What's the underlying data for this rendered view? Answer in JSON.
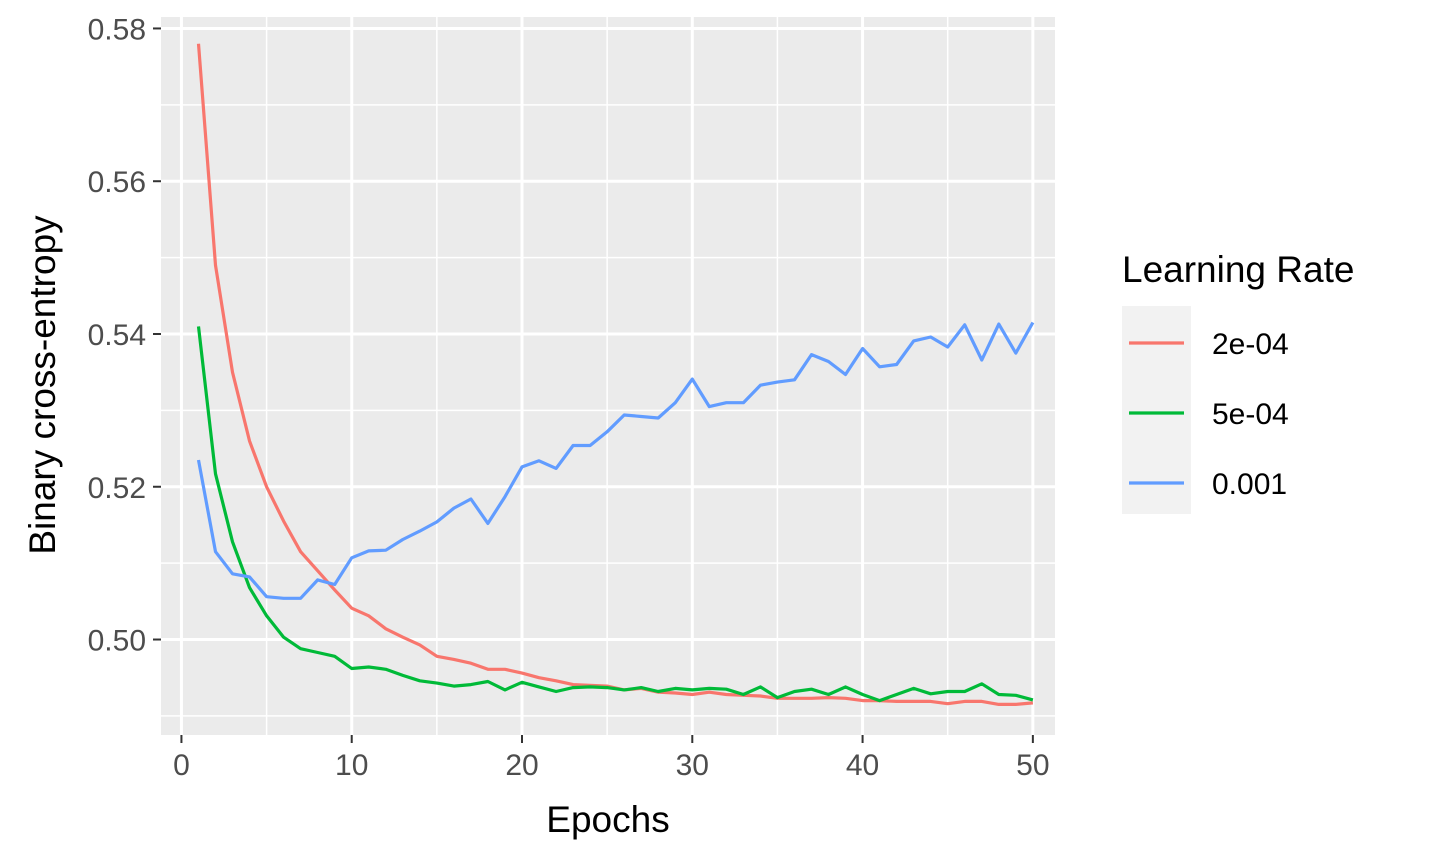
{
  "chart_data": {
    "type": "line",
    "xlabel": "Epochs",
    "ylabel": "Binary cross-entropy",
    "xlim": [
      -1.2,
      51.3
    ],
    "ylim": [
      0.4875,
      0.5815
    ],
    "x_ticks": [
      0,
      10,
      20,
      30,
      40,
      50
    ],
    "x_tick_labels": [
      "0",
      "10",
      "20",
      "30",
      "40",
      "50"
    ],
    "y_ticks": [
      0.5,
      0.52,
      0.54,
      0.56,
      0.58
    ],
    "y_tick_labels": [
      "0.50",
      "0.52",
      "0.54",
      "0.56",
      "0.58"
    ],
    "grid": true,
    "panel_background": "#ebebeb",
    "grid_color": "#ffffff",
    "legend": {
      "title": "Learning Rate",
      "placement": "right",
      "background": "#f2f2f2"
    },
    "x": [
      1,
      2,
      3,
      4,
      5,
      6,
      7,
      8,
      9,
      10,
      11,
      12,
      13,
      14,
      15,
      16,
      17,
      18,
      19,
      20,
      21,
      22,
      23,
      24,
      25,
      26,
      27,
      28,
      29,
      30,
      31,
      32,
      33,
      34,
      35,
      36,
      37,
      38,
      39,
      40,
      41,
      42,
      43,
      44,
      45,
      46,
      47,
      48,
      49,
      50
    ],
    "series": [
      {
        "name": "2e-04",
        "color": "#f8766d",
        "values": [
          0.578,
          0.549,
          0.535,
          0.526,
          0.52,
          0.5155,
          0.5115,
          0.509,
          0.5065,
          0.5041,
          0.5031,
          0.5014,
          0.5003,
          0.4993,
          0.4978,
          0.4974,
          0.4969,
          0.4961,
          0.4961,
          0.4956,
          0.495,
          0.4946,
          0.4941,
          0.494,
          0.4939,
          0.4934,
          0.4936,
          0.4931,
          0.493,
          0.4928,
          0.4931,
          0.4928,
          0.4927,
          0.4926,
          0.4923,
          0.4923,
          0.4923,
          0.4924,
          0.4923,
          0.492,
          0.492,
          0.4919,
          0.4919,
          0.4919,
          0.4916,
          0.4919,
          0.4919,
          0.4915,
          0.4915,
          0.4917
        ]
      },
      {
        "name": "5e-04",
        "color": "#00ba38",
        "values": [
          0.541,
          0.5217,
          0.5128,
          0.5068,
          0.5031,
          0.5003,
          0.4988,
          0.4983,
          0.4978,
          0.4962,
          0.4964,
          0.4961,
          0.4953,
          0.4946,
          0.4943,
          0.4939,
          0.4941,
          0.4945,
          0.4934,
          0.4944,
          0.4938,
          0.4932,
          0.4937,
          0.4938,
          0.4937,
          0.4934,
          0.4937,
          0.4932,
          0.4936,
          0.4934,
          0.4936,
          0.4935,
          0.4928,
          0.4938,
          0.4924,
          0.4932,
          0.4935,
          0.4928,
          0.4938,
          0.4928,
          0.492,
          0.4928,
          0.4936,
          0.4929,
          0.4932,
          0.4932,
          0.4942,
          0.4928,
          0.4927,
          0.4921
        ]
      },
      {
        "name": "0.001",
        "color": "#619cff",
        "values": [
          0.5235,
          0.5115,
          0.5086,
          0.5082,
          0.5056,
          0.5054,
          0.5054,
          0.5078,
          0.5072,
          0.5107,
          0.5116,
          0.5117,
          0.5131,
          0.5142,
          0.5154,
          0.5172,
          0.5184,
          0.5152,
          0.5187,
          0.5226,
          0.5234,
          0.5224,
          0.5254,
          0.5254,
          0.5272,
          0.5294,
          0.5292,
          0.529,
          0.531,
          0.5341,
          0.5305,
          0.531,
          0.531,
          0.5333,
          0.5337,
          0.534,
          0.5373,
          0.5364,
          0.5347,
          0.5381,
          0.5357,
          0.536,
          0.5391,
          0.5396,
          0.5383,
          0.5412,
          0.5366,
          0.5413,
          0.5375,
          0.5415
        ]
      }
    ]
  }
}
